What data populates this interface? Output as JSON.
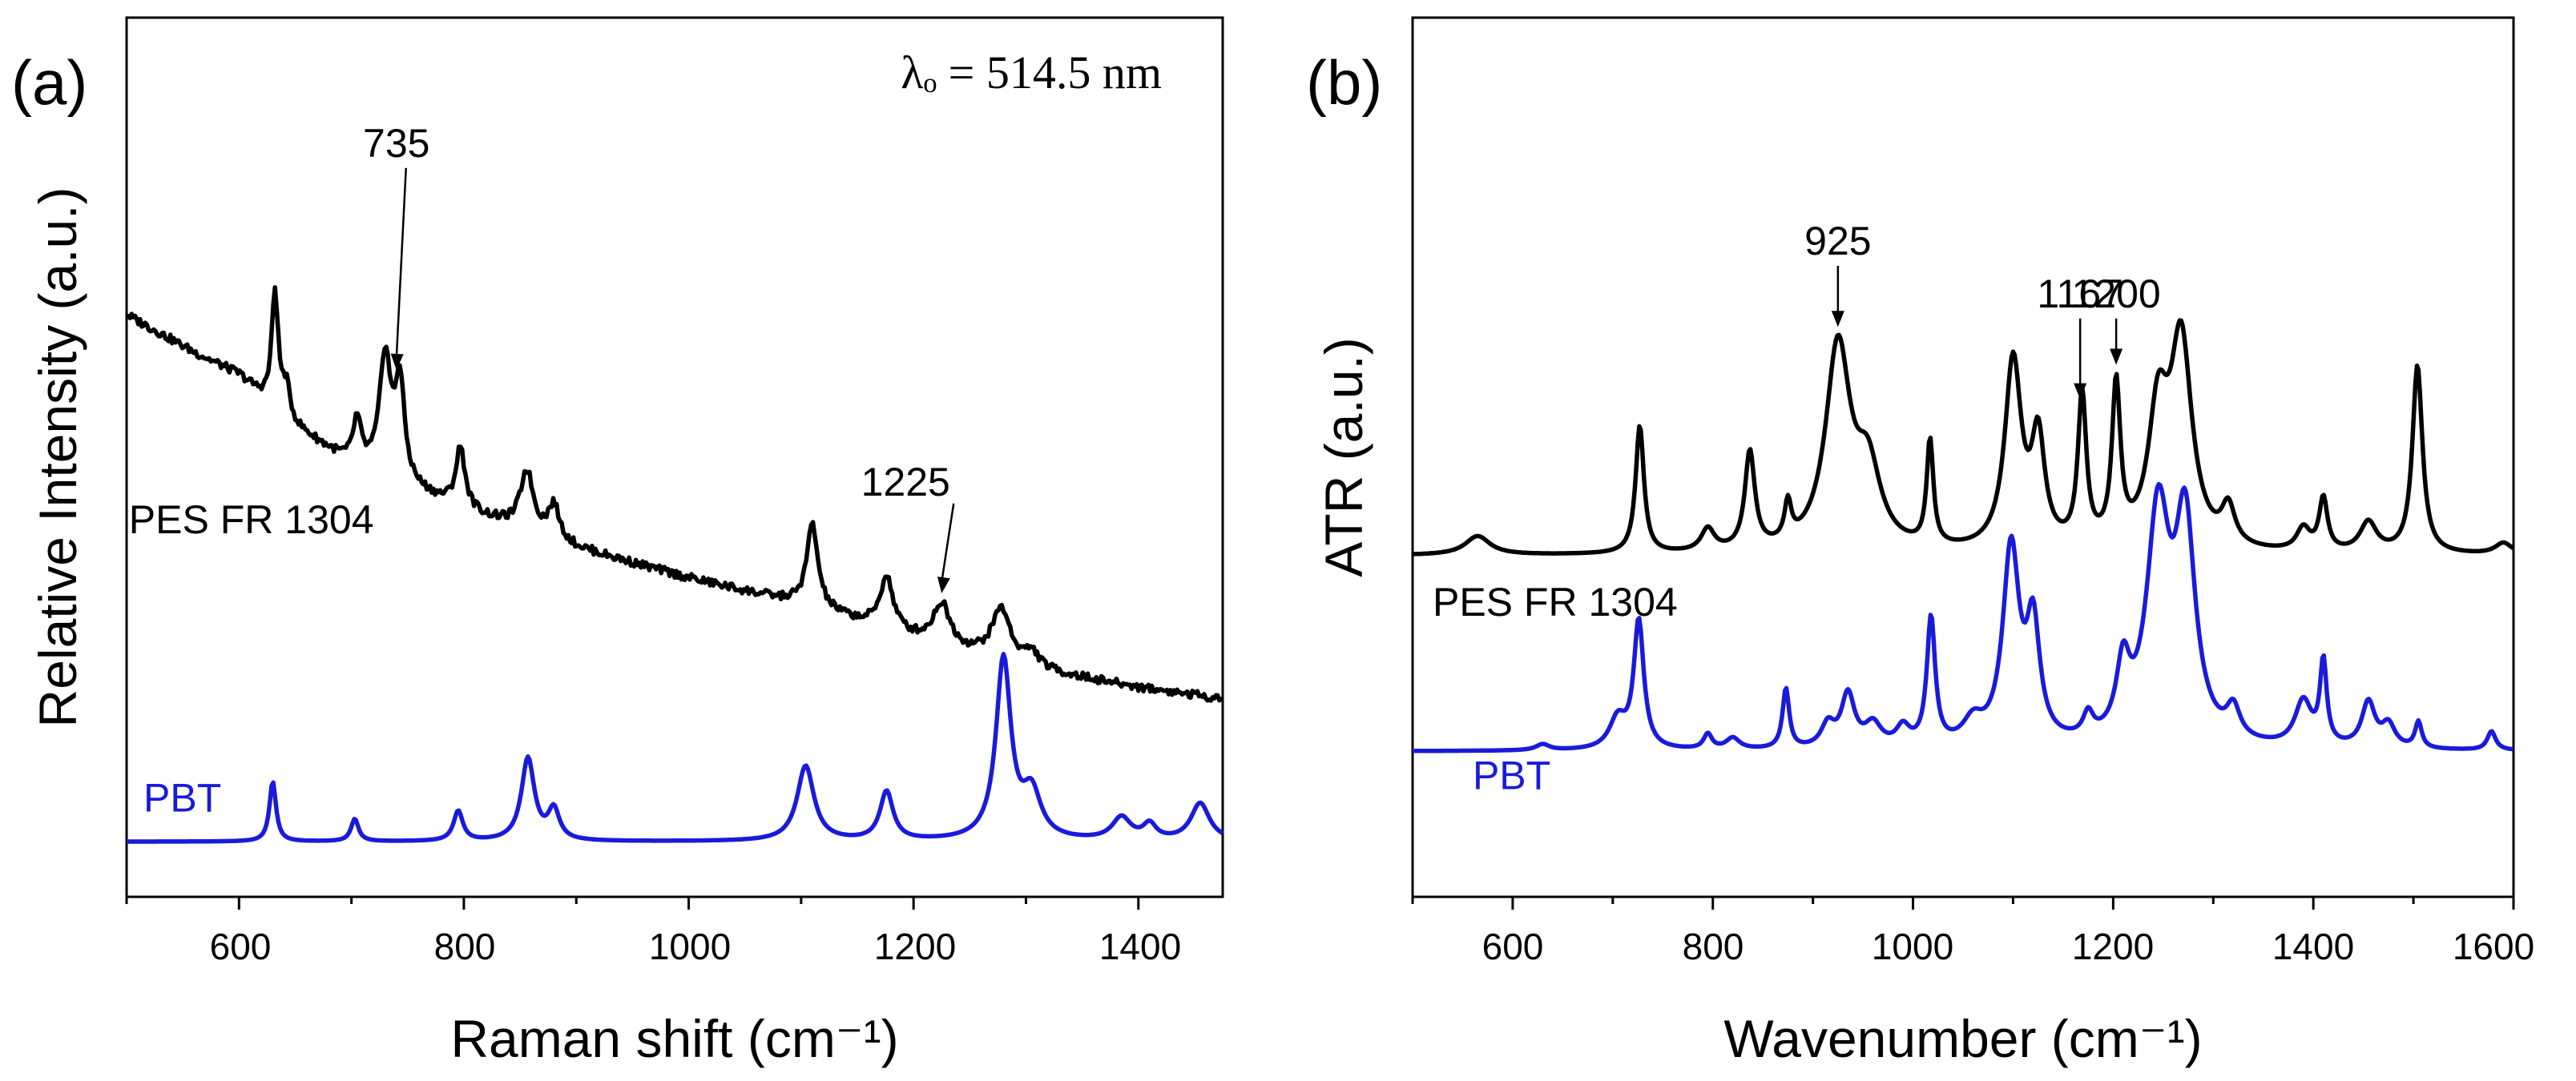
{
  "chart_data": [
    {
      "panel": "(a)",
      "type": "line",
      "xlabel": "Raman shift (cm⁻¹)",
      "ylabel": "Relative Intensity (a.u.)",
      "xlim": [
        500,
        1475
      ],
      "ylim": [
        0,
        100
      ],
      "xticks": [
        600,
        800,
        1000,
        1200,
        1400
      ],
      "tick_labels": [
        "600",
        "800",
        "1000",
        "1200",
        "1400"
      ],
      "grid": false,
      "annotation_text": "λₒ = 514.5 nm",
      "series": [
        {
          "name": "PES FR 1304",
          "color": "#000000",
          "baseline": [
            [
              500,
              72
            ],
            [
              560,
              67
            ],
            [
              600,
              64
            ],
            [
              650,
              57
            ],
            [
              700,
              52
            ],
            [
              750,
              49
            ],
            [
              800,
              46
            ],
            [
              900,
              41
            ],
            [
              1000,
              37
            ],
            [
              1100,
              33.5
            ],
            [
              1200,
              29
            ],
            [
              1300,
              25
            ],
            [
              1400,
              22.5
            ],
            [
              1475,
              21
            ]
          ],
          "peaks": [
            {
              "x": 632,
              "height": 15.5,
              "width": 3.5
            },
            {
              "x": 642,
              "height": 4,
              "width": 4
            },
            {
              "x": 705,
              "height": 6,
              "width": 4.5
            },
            {
              "x": 730,
              "height": 16,
              "width": 6
            },
            {
              "x": 743,
              "height": 13,
              "width": 5
            },
            {
              "x": 797,
              "height": 8,
              "width": 5
            },
            {
              "x": 856,
              "height": 8,
              "width": 7
            },
            {
              "x": 880,
              "height": 4.5,
              "width": 6
            },
            {
              "x": 1110,
              "height": 11,
              "width": 6
            },
            {
              "x": 1176,
              "height": 7,
              "width": 7
            },
            {
              "x": 1225,
              "height": 5.5,
              "width": 9
            },
            {
              "x": 1278,
              "height": 7,
              "width": 10
            },
            {
              "x": 1305,
              "height": 2,
              "width": 8
            }
          ]
        },
        {
          "name": "PBT",
          "color": "#1a1adb",
          "baseline": [
            [
              500,
              2
            ],
            [
              1475,
              2
            ]
          ],
          "peaks": [
            {
              "x": 630,
              "height": 8,
              "width": 3.5
            },
            {
              "x": 703,
              "height": 3,
              "width": 4
            },
            {
              "x": 795,
              "height": 4,
              "width": 5
            },
            {
              "x": 857,
              "height": 11,
              "width": 7
            },
            {
              "x": 880,
              "height": 4,
              "width": 6
            },
            {
              "x": 1104,
              "height": 10,
              "width": 9
            },
            {
              "x": 1176,
              "height": 6.5,
              "width": 7
            },
            {
              "x": 1280,
              "height": 24,
              "width": 8
            },
            {
              "x": 1305,
              "height": 6,
              "width": 10
            },
            {
              "x": 1385,
              "height": 3,
              "width": 10
            },
            {
              "x": 1410,
              "height": 2,
              "width": 7
            },
            {
              "x": 1455,
              "height": 5,
              "width": 10
            }
          ]
        }
      ],
      "annotations": [
        {
          "text": "735",
          "x": 740,
          "y": 93
        },
        {
          "text": "1225",
          "x": 1225,
          "y": 48
        }
      ],
      "series_labels": [
        {
          "text": "PES FR 1304",
          "color": "#000000",
          "x": 502,
          "y": 43
        },
        {
          "text": "PBT",
          "color": "#1a1adb",
          "x": 515,
          "y": 6
        }
      ]
    },
    {
      "panel": "(b)",
      "type": "line",
      "xlabel": "Wavenumber (cm⁻¹)",
      "ylabel": "ATR (a.u.)",
      "xlim": [
        500,
        1600
      ],
      "ylim": [
        0,
        100
      ],
      "xticks": [
        600,
        800,
        1000,
        1200,
        1400,
        1600
      ],
      "tick_labels": [
        "600",
        "800",
        "1000",
        "1200",
        "1400",
        "1600"
      ],
      "grid": false,
      "series": [
        {
          "name": "PES FR 1304",
          "color": "#000000",
          "baseline": [
            [
              500,
              40
            ],
            [
              1600,
              40
            ]
          ],
          "peaks": [
            {
              "x": 565,
              "height": 2.5,
              "width": 15
            },
            {
              "x": 727,
              "height": 17,
              "width": 5
            },
            {
              "x": 795,
              "height": 3,
              "width": 8
            },
            {
              "x": 837,
              "height": 13,
              "width": 6
            },
            {
              "x": 875,
              "height": 5,
              "width": 4
            },
            {
              "x": 925,
              "height": 27,
              "width": 15
            },
            {
              "x": 955,
              "height": 10,
              "width": 15
            },
            {
              "x": 1017,
              "height": 14,
              "width": 4
            },
            {
              "x": 1100,
              "height": 25,
              "width": 10
            },
            {
              "x": 1125,
              "height": 14,
              "width": 8
            },
            {
              "x": 1169,
              "height": 20,
              "width": 5
            },
            {
              "x": 1203,
              "height": 21,
              "width": 5
            },
            {
              "x": 1245,
              "height": 17,
              "width": 12
            },
            {
              "x": 1268,
              "height": 27,
              "width": 13
            },
            {
              "x": 1315,
              "height": 5,
              "width": 8
            },
            {
              "x": 1390,
              "height": 3,
              "width": 8
            },
            {
              "x": 1410,
              "height": 7,
              "width": 5
            },
            {
              "x": 1455,
              "height": 4,
              "width": 10
            },
            {
              "x": 1504,
              "height": 25,
              "width": 6
            },
            {
              "x": 1590,
              "height": 1.5,
              "width": 10
            }
          ]
        },
        {
          "name": "PBT",
          "color": "#1a1adb",
          "baseline": [
            [
              500,
              14
            ],
            [
              1600,
              14
            ]
          ],
          "peaks": [
            {
              "x": 630,
              "height": 0.8,
              "width": 8
            },
            {
              "x": 705,
              "height": 4,
              "width": 10
            },
            {
              "x": 726,
              "height": 17,
              "width": 6
            },
            {
              "x": 795,
              "height": 2,
              "width": 5
            },
            {
              "x": 820,
              "height": 1.5,
              "width": 8
            },
            {
              "x": 873,
              "height": 8,
              "width": 4
            },
            {
              "x": 915,
              "height": 3,
              "width": 8
            },
            {
              "x": 935,
              "height": 7,
              "width": 8
            },
            {
              "x": 960,
              "height": 3,
              "width": 10
            },
            {
              "x": 990,
              "height": 2.5,
              "width": 8
            },
            {
              "x": 1018,
              "height": 17,
              "width": 5
            },
            {
              "x": 1060,
              "height": 3,
              "width": 12
            },
            {
              "x": 1098,
              "height": 26,
              "width": 10
            },
            {
              "x": 1120,
              "height": 15,
              "width": 8
            },
            {
              "x": 1175,
              "height": 3,
              "width": 6
            },
            {
              "x": 1210,
              "height": 9,
              "width": 8
            },
            {
              "x": 1245,
              "height": 30,
              "width": 14
            },
            {
              "x": 1272,
              "height": 28,
              "width": 12
            },
            {
              "x": 1320,
              "height": 4,
              "width": 8
            },
            {
              "x": 1390,
              "height": 6,
              "width": 10
            },
            {
              "x": 1410,
              "height": 11,
              "width": 4
            },
            {
              "x": 1455,
              "height": 6,
              "width": 8
            },
            {
              "x": 1475,
              "height": 3,
              "width": 8
            },
            {
              "x": 1505,
              "height": 3.5,
              "width": 4
            },
            {
              "x": 1578,
              "height": 2.5,
              "width": 5
            }
          ]
        }
      ],
      "annotations": [
        {
          "text": "925",
          "x": 925,
          "y": 80
        },
        {
          "text": "1167",
          "x": 1167,
          "y": 73
        },
        {
          "text": "1200",
          "x": 1203,
          "y": 73
        }
      ],
      "series_labels": [
        {
          "text": "PES FR 1304",
          "color": "#000000",
          "x": 520,
          "y": 32
        },
        {
          "text": "PBT",
          "color": "#1a1adb",
          "x": 560,
          "y": 9
        }
      ]
    }
  ]
}
